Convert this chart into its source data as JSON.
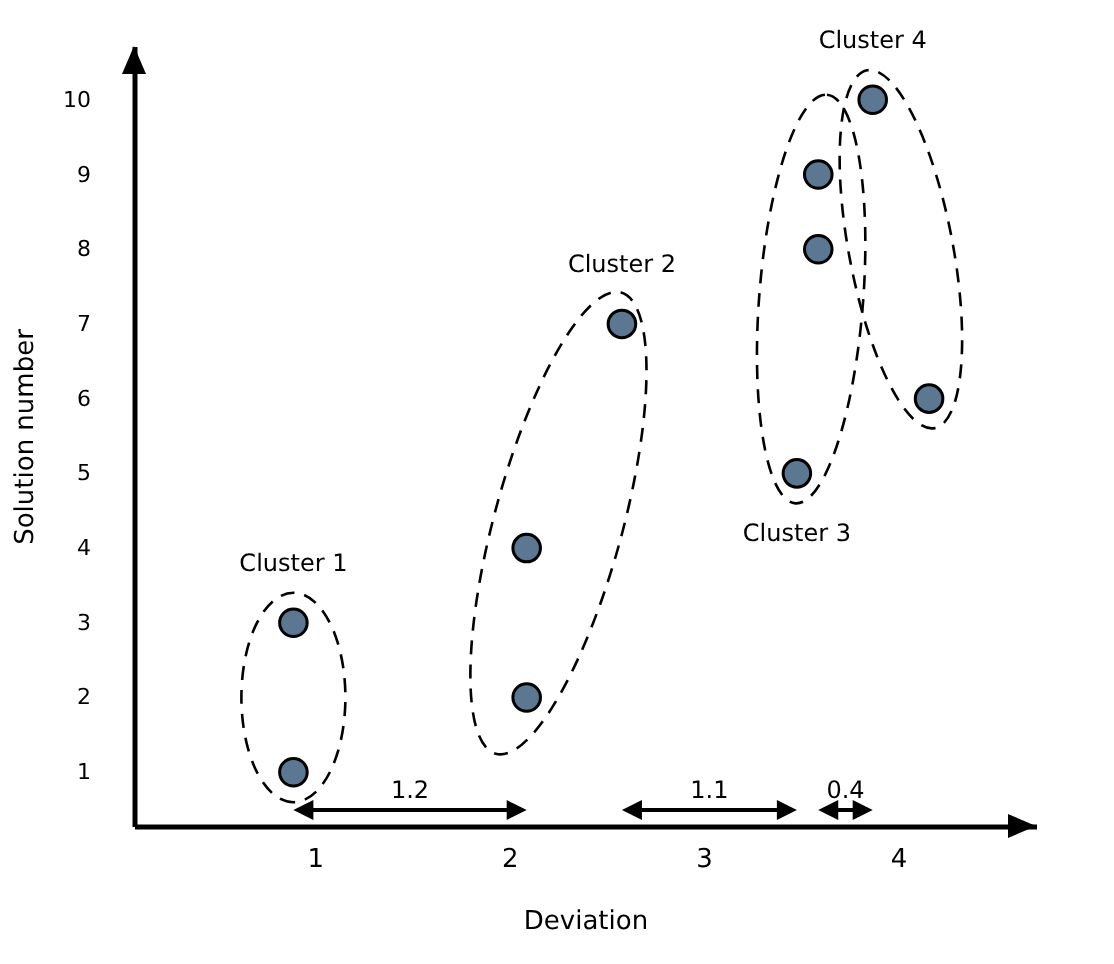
{
  "chart_data": {
    "type": "scatter",
    "xlabel": "Deviation",
    "ylabel": "Solution number",
    "xlim": [
      0.07,
      4.71
    ],
    "xticks": [
      1,
      2,
      3,
      4
    ],
    "ylim": [
      0.28,
      10.72
    ],
    "yticks": [
      1,
      2,
      3,
      4,
      5,
      6,
      7,
      8,
      9,
      10
    ],
    "marker": "circle",
    "series": [
      {
        "name": "Cluster 1",
        "color": "#5b7792",
        "x": [
          0.89,
          0.89
        ],
        "values": [
          1,
          3
        ]
      },
      {
        "name": "Cluster 2",
        "color": "#5b7792",
        "x": [
          2.09,
          2.09,
          2.58
        ],
        "values": [
          2,
          4,
          7
        ]
      },
      {
        "name": "Cluster 3",
        "color": "#5b7792",
        "x": [
          3.59,
          3.59,
          3.48
        ],
        "values": [
          9,
          8,
          5
        ]
      },
      {
        "name": "Cluster 4",
        "color": "#5b7792",
        "x": [
          4.16,
          3.87
        ],
        "values": [
          6,
          10
        ]
      }
    ],
    "annotations": [
      "1.2",
      "1.1",
      "0.4"
    ]
  }
}
